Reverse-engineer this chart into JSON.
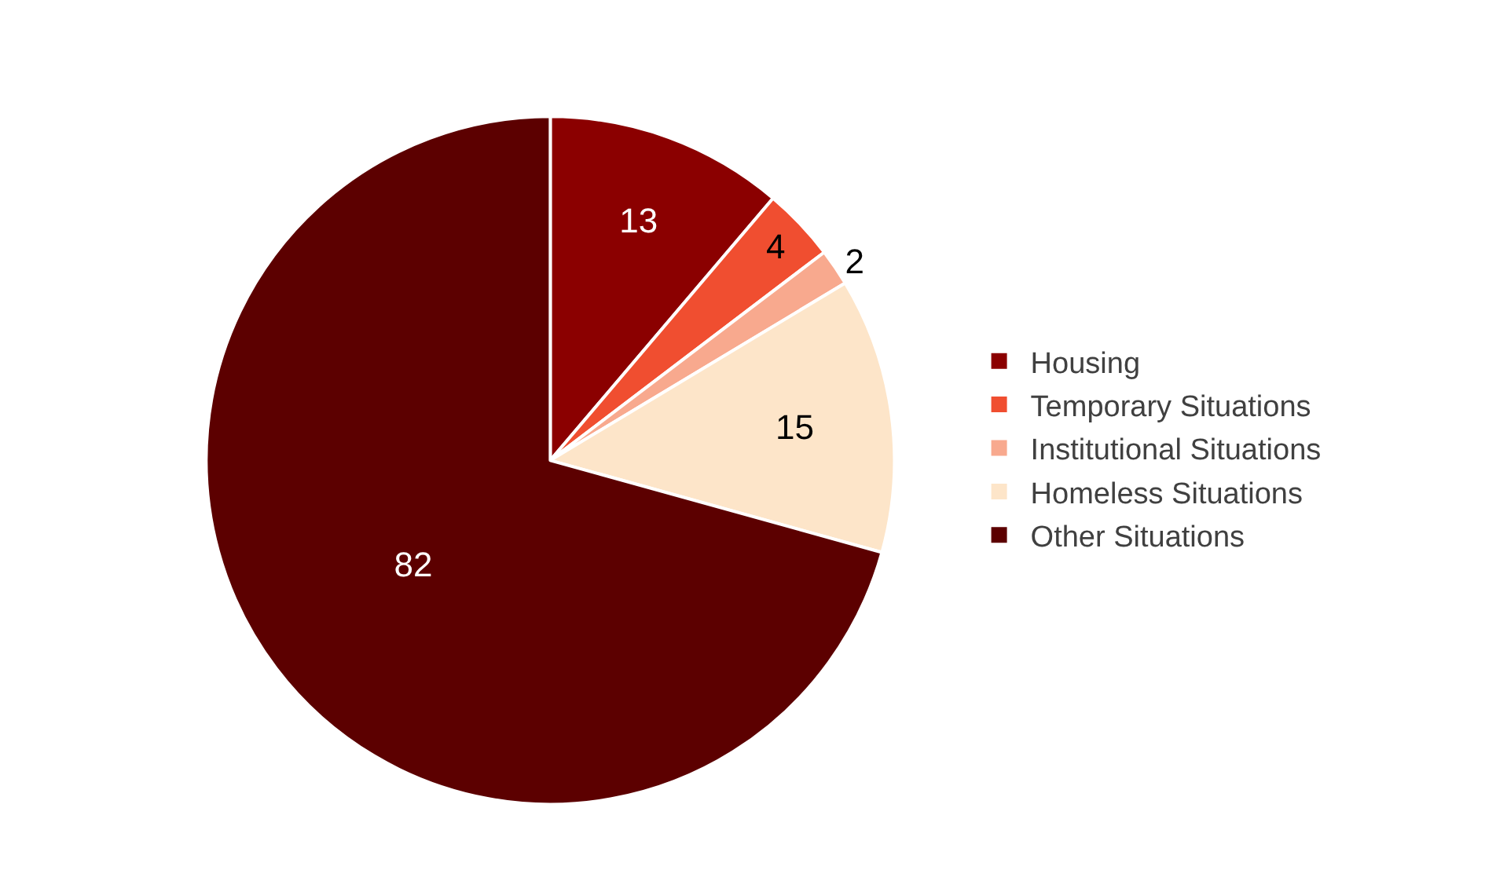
{
  "chart_data": {
    "type": "pie",
    "categories": [
      "Housing",
      "Temporary Situations",
      "Institutional Situations",
      "Homeless Situations",
      "Other Situations"
    ],
    "values": [
      13,
      4,
      2,
      15,
      82
    ],
    "colors": [
      "#8b0000",
      "#f04e30",
      "#f8a98e",
      "#fde5c9",
      "#5c0000"
    ],
    "data_labels": true,
    "legend": "right"
  }
}
